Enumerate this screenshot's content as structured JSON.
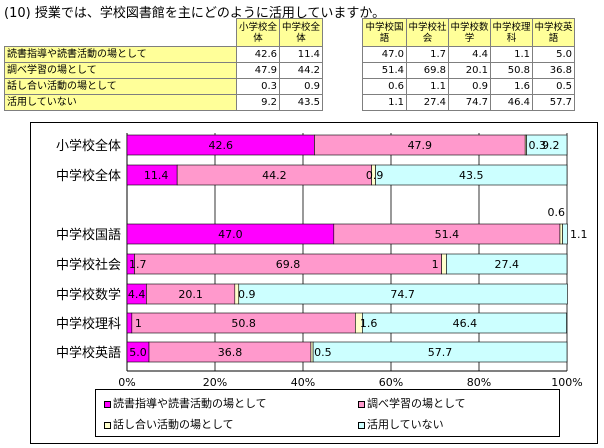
{
  "question": "(10) 授業では、学校図書館を主にどのように活用していますか。",
  "table": {
    "header_elementary": [
      "小学校全体",
      "中学校全体"
    ],
    "header_middle": [
      "中学校国語",
      "中学校社会",
      "中学校数学",
      "中学校理科",
      "中学校英語"
    ],
    "rows": [
      {
        "label": "読書指導や読書活動の場として",
        "values": [
          "42.6",
          "11.4",
          "47.0",
          "1.7",
          "4.4",
          "1.1",
          "5.0"
        ]
      },
      {
        "label": "調べ学習の場として",
        "values": [
          "47.9",
          "44.2",
          "51.4",
          "69.8",
          "20.1",
          "50.8",
          "36.8"
        ]
      },
      {
        "label": "話し合い活動の場として",
        "values": [
          "0.3",
          "0.9",
          "0.6",
          "1.1",
          "0.9",
          "1.6",
          "0.5"
        ]
      },
      {
        "label": "活用していない",
        "values": [
          "9.2",
          "43.5",
          "1.1",
          "27.4",
          "74.7",
          "46.4",
          "57.7"
        ]
      }
    ]
  },
  "chart_data": {
    "type": "bar",
    "orientation": "horizontal",
    "stacked": true,
    "categories": [
      "小学校全体",
      "中学校全体",
      "中学校国語",
      "中学校社会",
      "中学校数学",
      "中学校理科",
      "中学校英語"
    ],
    "series": [
      {
        "name": "読書指導や読書活動の場として",
        "color": "#ff00ff",
        "values": [
          42.6,
          11.4,
          47.0,
          1.7,
          4.4,
          1.1,
          5.0
        ]
      },
      {
        "name": "調べ学習の場として",
        "color": "#ff99cc",
        "values": [
          47.9,
          44.2,
          51.4,
          69.8,
          20.1,
          50.8,
          36.8
        ]
      },
      {
        "name": "話し合い活動の場として",
        "color": "#ffffcc",
        "values": [
          0.3,
          0.9,
          0.6,
          1.1,
          0.9,
          1.6,
          0.5
        ]
      },
      {
        "name": "活用していない",
        "color": "#ccffff",
        "values": [
          9.2,
          43.5,
          1.1,
          27.4,
          74.7,
          46.4,
          57.7
        ]
      }
    ],
    "bar_labels": [
      [
        "42.6",
        "47.9",
        "0.3",
        "9.2"
      ],
      [
        "11.4",
        "44.2",
        "0.9",
        "43.5"
      ],
      [
        "47.0",
        "51.4",
        "0.6",
        "1.1"
      ],
      [
        "1.7",
        "69.8",
        "1",
        "27.4"
      ],
      [
        "4.4",
        "20.1",
        "0.9",
        "74.7"
      ],
      [
        "1",
        "50.8",
        "1.6",
        "46.4"
      ],
      [
        "5.0",
        "36.8",
        "0.5",
        "57.7"
      ]
    ],
    "xlim": [
      0,
      100
    ],
    "xticks": [
      "0%",
      "20%",
      "40%",
      "60%",
      "80%",
      "100%"
    ],
    "grid": "vertical",
    "legend_position": "bottom"
  }
}
